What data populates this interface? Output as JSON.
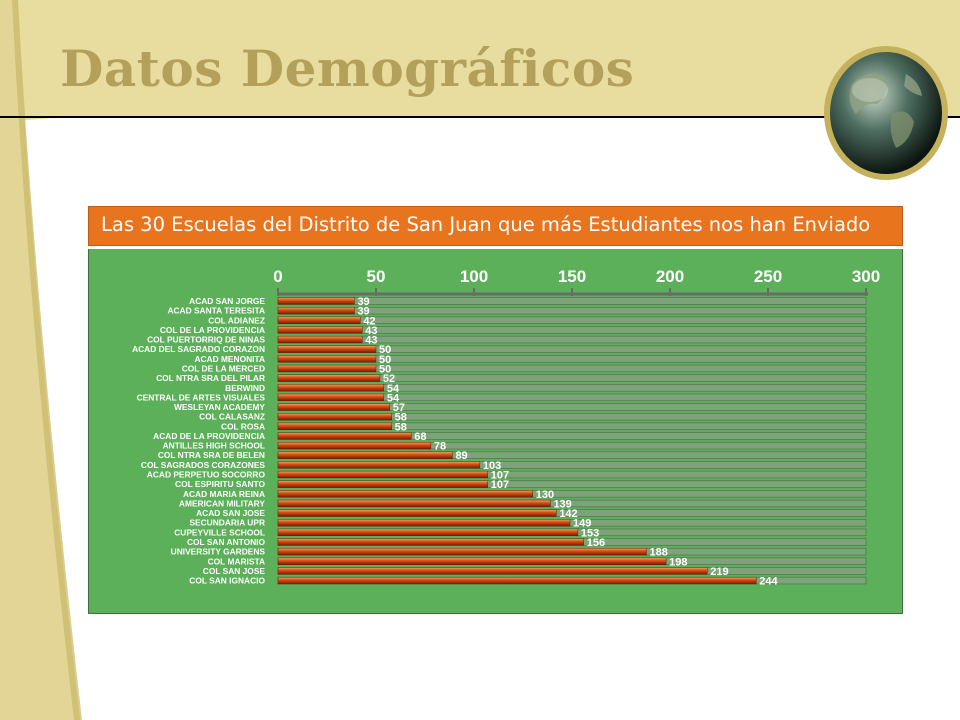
{
  "slide": {
    "title": "Datos Demográficos"
  },
  "colors": {
    "title": "#b3a05a",
    "header_bg": "#e8741e",
    "panel_bg": "#5cb05a",
    "bar": "#cc3a10",
    "track": "#7ea27a",
    "text": "#ffffff"
  },
  "chart_data": {
    "type": "bar",
    "orientation": "horizontal",
    "title": "Las 30 Escuelas del Distrito de San Juan que más Estudiantes nos han Enviado",
    "axis_position": "top",
    "xlim": [
      0,
      300
    ],
    "ticks": [
      0,
      50,
      100,
      150,
      200,
      250,
      300
    ],
    "categories": [
      "ACAD SAN JORGE",
      "ACAD SANTA TERESITA",
      "COL ADIANEZ",
      "COL DE LA PROVIDENCIA",
      "COL PUERTORRIQ DE NINAS",
      "ACAD DEL SAGRADO CORAZON",
      "ACAD MENONITA",
      "COL DE LA MERCED",
      "COL NTRA SRA DEL PILAR",
      "BERWIND",
      "CENTRAL DE ARTES VISUALES",
      "WESLEYAN ACADEMY",
      "COL CALASANZ",
      "COL ROSA",
      "ACAD DE LA PROVIDENCIA",
      "ANTILLES HIGH SCHOOL",
      "COL NTRA SRA DE BELEN",
      "COL SAGRADOS CORAZONES",
      "ACAD PERPETUO SOCORRO",
      "COL ESPIRITU SANTO",
      "ACAD MARIA REINA",
      "AMERICAN MILITARY",
      "ACAD SAN JOSE",
      "SECUNDARIA UPR",
      "CUPEYVILLE SCHOOL",
      "COL SAN ANTONIO",
      "UNIVERSITY GARDENS",
      "COL MARISTA",
      "COL SAN JOSE",
      "COL SAN IGNACIO"
    ],
    "values": [
      39,
      39,
      42,
      43,
      43,
      50,
      50,
      50,
      52,
      54,
      54,
      57,
      58,
      58,
      68,
      78,
      89,
      103,
      107,
      107,
      130,
      139,
      142,
      149,
      153,
      156,
      188,
      198,
      219,
      244
    ],
    "data_labels": true,
    "grid": false,
    "legend": "none"
  }
}
